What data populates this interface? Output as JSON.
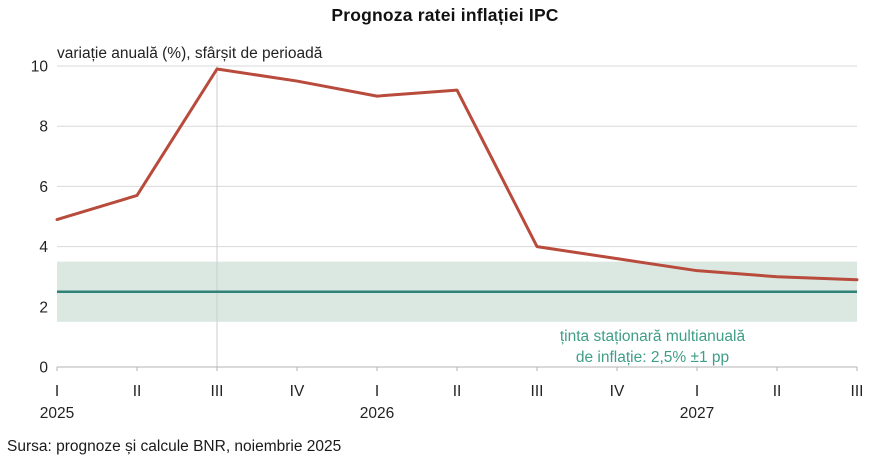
{
  "header": {
    "title": "Prognoza ratei inflației IPC",
    "subtitle": "variație anuală (%), sfârșit de perioadă"
  },
  "annotation": {
    "line1": "ținta staționară multianuală",
    "line2": "de inflație: 2,5% ±1 pp"
  },
  "footer": {
    "source": "Sursa: prognoze și calcule BNR, noiembrie 2025"
  },
  "colors": {
    "forecast_line": "#b84b3b",
    "target_line": "#2e8276",
    "target_band": "#dbe8e2",
    "gridline": "#d9d9d9",
    "axis": "#b3b3b3",
    "forecast_divider": "#cccccc",
    "annotation_text": "#3f9e86",
    "tick_text": "#222222"
  },
  "chart_data": {
    "type": "line",
    "title": "Prognoza ratei inflației IPC",
    "subtitle": "variație anuală (%), sfârșit de perioadă",
    "categories": [
      "I",
      "II",
      "III",
      "IV",
      "I",
      "II",
      "III",
      "IV",
      "I",
      "II",
      "III"
    ],
    "year_labels": [
      {
        "index": 0,
        "label": "2025"
      },
      {
        "index": 4,
        "label": "2026"
      },
      {
        "index": 8,
        "label": "2027"
      }
    ],
    "series": [
      {
        "name": "prognoza ratei inflației IPC",
        "values": [
          4.9,
          5.7,
          9.9,
          9.5,
          9.0,
          9.2,
          4.0,
          3.6,
          3.2,
          3.0,
          2.9
        ]
      }
    ],
    "target": {
      "value": 2.5,
      "band_low": 1.5,
      "band_high": 3.5,
      "label": "ținta staționară multianuală de inflație: 2,5% ±1 pp"
    },
    "ylim": [
      0,
      10
    ],
    "yticks": [
      0,
      2,
      4,
      6,
      8,
      10
    ],
    "forecast_divider_index": 2,
    "grid": "horizontal",
    "legend": "none",
    "source": "Sursa: prognoze și calcule BNR, noiembrie 2025"
  }
}
